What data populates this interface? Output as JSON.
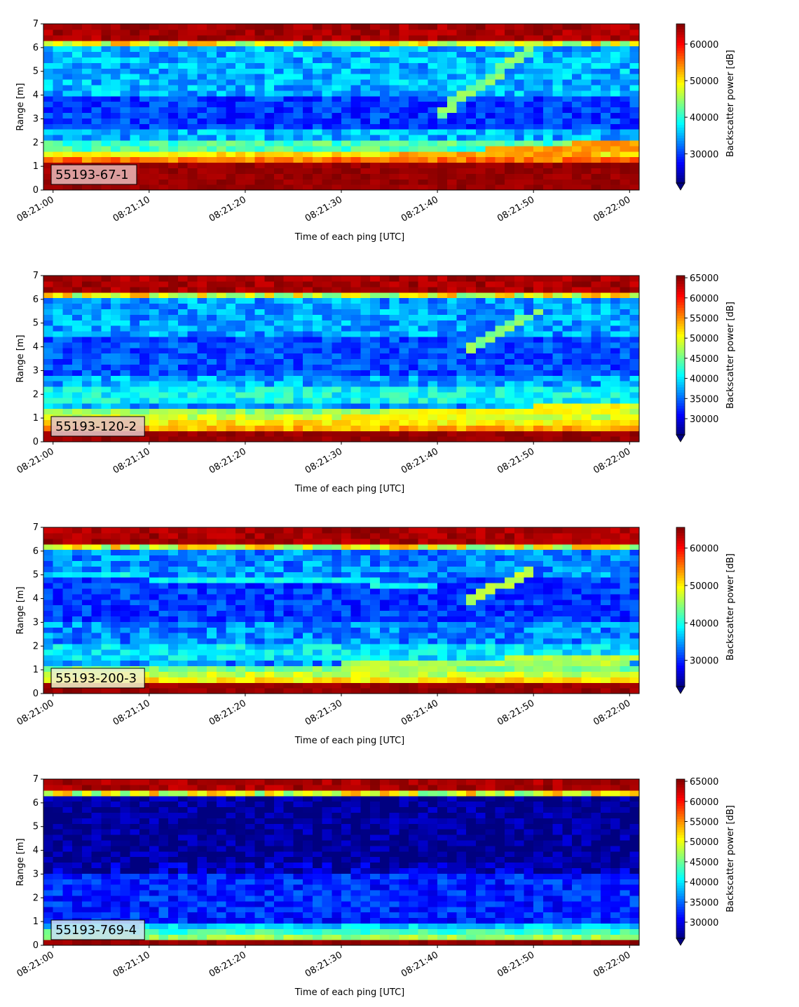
{
  "colormap": "jet",
  "colorbar_extend": "min",
  "colors": {
    "jet_stops": [
      "#00007f",
      "#0000ff",
      "#007fff",
      "#00ffff",
      "#7fff7f",
      "#ffff00",
      "#ff7f00",
      "#ff0000",
      "#7f0000"
    ],
    "label_box": "#f2f2f2",
    "axis": "#000000"
  },
  "chart_data": [
    {
      "type": "heatmap",
      "label": "55193-67-1",
      "label_box_color": "#e6b3b3",
      "xlabel": "Time of each ping [UTC]",
      "ylabel": "Range [m]",
      "colorbar_label": "Backscatter power [dB]",
      "xticks": [
        "08:21:00",
        "08:21:10",
        "08:21:20",
        "08:21:30",
        "08:21:40",
        "08:21:50",
        "08:22:00"
      ],
      "yticks": [
        "0",
        "1",
        "2",
        "3",
        "4",
        "5",
        "6",
        "7"
      ],
      "colorbar_ticks": [
        "30000",
        "40000",
        "50000",
        "60000"
      ],
      "colorbar_tick_values": [
        30000,
        40000,
        50000,
        60000
      ],
      "colorbar_range": [
        22000,
        65535
      ],
      "xlim_seconds": [
        -1,
        61
      ],
      "ylim": [
        0,
        7
      ],
      "profile": {
        "bottom_strong": 1.2,
        "bottom_edge": 1.7,
        "bottom_edge_level": 0.55,
        "surface_strong": 6.4,
        "surface_edge": 6.1,
        "mid_level": 0.3,
        "dark_band": [
          2.6,
          4.0
        ],
        "dark_level": 0.18,
        "bright_band": [
          1.5,
          2.1
        ],
        "bright_level": 0.45
      },
      "tracks": [
        {
          "t_start": 35,
          "t_end": 61,
          "r_start": 1.2,
          "r_end": 1.9,
          "level": 0.72,
          "width": 0.28
        },
        {
          "t_start": 40,
          "t_end": 50,
          "r_start": 3.2,
          "r_end": 6.0,
          "level": 0.5,
          "width": 0.25
        }
      ]
    },
    {
      "type": "heatmap",
      "label": "55193-120-2",
      "label_box_color": "#e3c3c3",
      "xlabel": "Time of each ping [UTC]",
      "ylabel": "Range [m]",
      "colorbar_label": "Backscatter power [dB]",
      "xticks": [
        "08:21:00",
        "08:21:10",
        "08:21:20",
        "08:21:30",
        "08:21:40",
        "08:21:50",
        "08:22:00"
      ],
      "yticks": [
        "0",
        "1",
        "2",
        "3",
        "4",
        "5",
        "6",
        "7"
      ],
      "colorbar_ticks": [
        "30000",
        "35000",
        "40000",
        "45000",
        "50000",
        "55000",
        "60000",
        "65000"
      ],
      "colorbar_tick_values": [
        30000,
        35000,
        40000,
        45000,
        50000,
        55000,
        60000,
        65000
      ],
      "colorbar_range": [
        26000,
        65535
      ],
      "xlim_seconds": [
        -1,
        61
      ],
      "ylim": [
        0,
        7
      ],
      "profile": {
        "bottom_strong": 0.5,
        "bottom_edge": 1.4,
        "bottom_edge_level": 0.48,
        "surface_strong": 6.3,
        "surface_edge": 6.0,
        "mid_level": 0.28,
        "dark_band": [
          2.8,
          4.5
        ],
        "dark_level": 0.2,
        "bright_band": [
          1.6,
          2.4
        ],
        "bright_level": 0.38
      },
      "tracks": [
        {
          "t_start": 30,
          "t_end": 61,
          "r_start": 1.0,
          "r_end": 1.5,
          "level": 0.62,
          "width": 0.2
        },
        {
          "t_start": 43,
          "t_end": 51,
          "r_start": 3.8,
          "r_end": 5.6,
          "level": 0.5,
          "width": 0.22
        }
      ]
    },
    {
      "type": "heatmap",
      "label": "55193-200-3",
      "label_box_color": "#f0f0c8",
      "xlabel": "Time of each ping [UTC]",
      "ylabel": "Range [m]",
      "colorbar_label": "Backscatter power [dB]",
      "xticks": [
        "08:21:00",
        "08:21:10",
        "08:21:20",
        "08:21:30",
        "08:21:40",
        "08:21:50",
        "08:22:00"
      ],
      "yticks": [
        "0",
        "1",
        "2",
        "3",
        "4",
        "5",
        "6",
        "7"
      ],
      "colorbar_ticks": [
        "30000",
        "40000",
        "50000",
        "60000"
      ],
      "colorbar_tick_values": [
        30000,
        40000,
        50000,
        60000
      ],
      "colorbar_range": [
        23000,
        65535
      ],
      "xlim_seconds": [
        -1,
        61
      ],
      "ylim": [
        0,
        7
      ],
      "profile": {
        "bottom_strong": 0.4,
        "bottom_edge": 1.2,
        "bottom_edge_level": 0.45,
        "surface_strong": 6.3,
        "surface_edge": 6.1,
        "mid_level": 0.26,
        "dark_band": [
          3.0,
          5.0
        ],
        "dark_level": 0.18,
        "bright_band": [
          1.5,
          2.2
        ],
        "bright_level": 0.35
      },
      "tracks": [
        {
          "t_start": 30,
          "t_end": 61,
          "r_start": 1.1,
          "r_end": 1.5,
          "level": 0.55,
          "width": 0.2
        },
        {
          "t_start": 43,
          "t_end": 50,
          "r_start": 3.8,
          "r_end": 5.3,
          "level": 0.55,
          "width": 0.22
        },
        {
          "t_start": 0,
          "t_end": 40,
          "r_start": 5.0,
          "r_end": 4.6,
          "level": 0.38,
          "width": 0.12
        }
      ]
    },
    {
      "type": "heatmap",
      "label": "55193-769-4",
      "label_box_color": "#c8e0f0",
      "xlabel": "Time of each ping [UTC]",
      "ylabel": "Range [m]",
      "colorbar_label": "Backscatter power [dB]",
      "xticks": [
        "08:21:00",
        "08:21:10",
        "08:21:20",
        "08:21:30",
        "08:21:40",
        "08:21:50",
        "08:22:00"
      ],
      "yticks": [
        "0",
        "1",
        "2",
        "3",
        "4",
        "5",
        "6",
        "7"
      ],
      "colorbar_ticks": [
        "30000",
        "35000",
        "40000",
        "45000",
        "50000",
        "55000",
        "60000",
        "65000"
      ],
      "colorbar_tick_values": [
        30000,
        35000,
        40000,
        45000,
        50000,
        55000,
        60000,
        65000
      ],
      "colorbar_range": [
        26000,
        65535
      ],
      "xlim_seconds": [
        -1,
        61
      ],
      "ylim": [
        0,
        7
      ],
      "profile": {
        "bottom_strong": 0.3,
        "bottom_edge": 0.9,
        "bottom_edge_level": 0.3,
        "surface_strong": 6.5,
        "surface_edge": 6.3,
        "mid_level": 0.06,
        "dark_band": [
          3.6,
          6.2
        ],
        "dark_level": 0.02,
        "bright_band": [
          0.5,
          3.0
        ],
        "bright_level": 0.16
      },
      "tracks": []
    }
  ]
}
